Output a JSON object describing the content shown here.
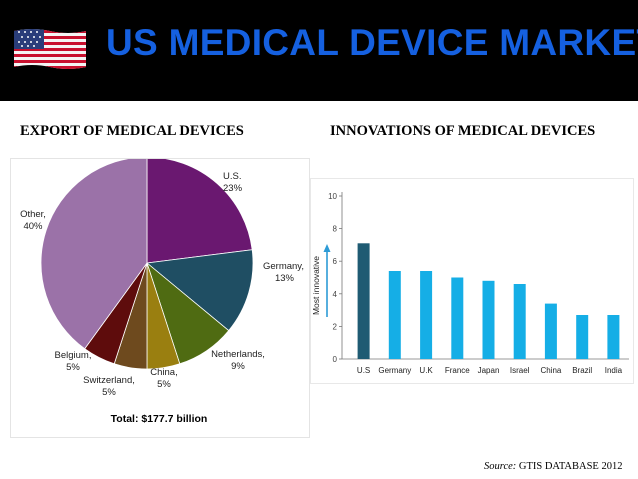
{
  "header": {
    "title": "US MEDICAL DEVICE MARKET"
  },
  "sections": {
    "left_title": "EXPORT OF MEDICAL DEVICES",
    "right_title": "INNOVATIONS OF MEDICAL DEVICES"
  },
  "source": {
    "label": "Source:",
    "text": "GTIS DATABASE 2012"
  },
  "colors": {
    "title": "#1560e0",
    "header_bg": "#000000",
    "bar_us": "#1f5b73",
    "bar_others": "#15aee6",
    "arrow": "#2d9bd6"
  },
  "chart_data": [
    {
      "type": "pie",
      "title": "EXPORT OF MEDICAL DEVICES",
      "total_label": "Total: $177.7 billion",
      "slices": [
        {
          "name": "U.S.",
          "value": 23,
          "value_label": "23%",
          "color": "#6a1870"
        },
        {
          "name": "Germany,",
          "value": 13,
          "value_label": "13%",
          "color": "#1f4e63"
        },
        {
          "name": "Netherlands,",
          "value": 9,
          "value_label": "9%",
          "color": "#4f6b12"
        },
        {
          "name": "China,",
          "value": 5,
          "value_label": "5%",
          "color": "#9a7f10"
        },
        {
          "name": "Switzerland,",
          "value": 5,
          "value_label": "5%",
          "color": "#6e4a1e"
        },
        {
          "name": "Belgium,",
          "value": 5,
          "value_label": "5%",
          "color": "#5e0c0c"
        },
        {
          "name": "Other,",
          "value": 40,
          "value_label": "40%",
          "color": "#9b72a8"
        }
      ]
    },
    {
      "type": "bar",
      "title": "INNOVATIONS OF MEDICAL DEVICES",
      "categories": [
        "U.S",
        "Germany",
        "U.K",
        "France",
        "Japan",
        "Israel",
        "China",
        "Brazil",
        "India"
      ],
      "values": [
        7.1,
        5.4,
        5.4,
        5.0,
        4.8,
        4.6,
        3.4,
        2.7,
        2.7
      ],
      "ylabel": "Most innovative",
      "ylim": [
        0,
        10
      ],
      "yticks": [
        "0",
        "2",
        "4",
        "6",
        "8",
        "10"
      ]
    }
  ]
}
